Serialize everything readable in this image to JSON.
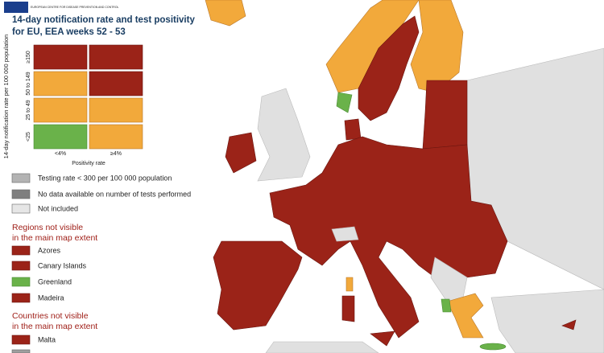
{
  "logo": "EUROPEAN CENTRE FOR DISEASE PREVENTION AND CONTROL",
  "title": [
    "14-day notification rate and test positivity",
    "for EU, EEA weeks 52 - 53"
  ],
  "matrix": {
    "y_axis_label": "14-day notification rate per 100 000 population",
    "rows": [
      "≥150",
      "50 to 149",
      "25 to 49",
      "<25"
    ],
    "columns": [
      "<4%",
      "≥4%"
    ],
    "x_axis_label": "Positivity rate"
  },
  "legend": {
    "other": [
      "Testing rate < 300 per 100 000 population",
      "No data available on number of tests performed",
      "Not included"
    ],
    "regions_title": [
      "Regions not visible",
      "in the main map extent"
    ],
    "regions": [
      "Azores",
      "Canary Islands",
      "Greenland",
      "Madeira"
    ],
    "countries_title": [
      "Countries not visible",
      "in the main map extent"
    ],
    "countries": [
      "Malta"
    ]
  }
}
